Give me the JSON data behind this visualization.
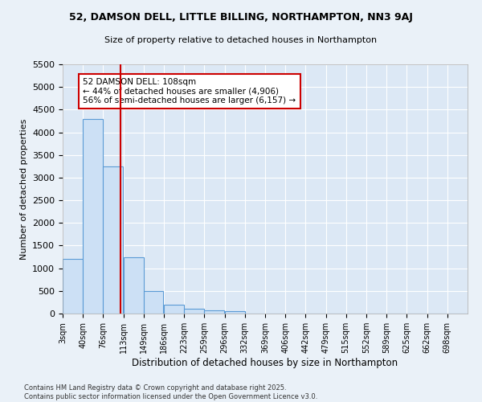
{
  "title1": "52, DAMSON DELL, LITTLE BILLING, NORTHAMPTON, NN3 9AJ",
  "title2": "Size of property relative to detached houses in Northampton",
  "xlabel": "Distribution of detached houses by size in Northampton",
  "ylabel": "Number of detached properties",
  "bar_color": "#cce0f5",
  "bar_edge_color": "#5b9bd5",
  "background_color": "#dce8f5",
  "grid_color": "#ffffff",
  "fig_color": "#eaf1f8",
  "vline_color": "#cc0000",
  "vline_x": 108,
  "annotation_text": "52 DAMSON DELL: 108sqm\n← 44% of detached houses are smaller (4,906)\n56% of semi-detached houses are larger (6,157) →",
  "annotation_box_color": "#ffffff",
  "annotation_border_color": "#cc0000",
  "footer1": "Contains HM Land Registry data © Crown copyright and database right 2025.",
  "footer2": "Contains public sector information licensed under the Open Government Licence v3.0.",
  "bins": [
    3,
    40,
    76,
    113,
    149,
    186,
    223,
    259,
    296,
    332,
    369,
    406,
    442,
    479,
    515,
    552,
    589,
    625,
    662,
    698,
    735
  ],
  "counts": [
    1200,
    4300,
    3250,
    1250,
    500,
    200,
    100,
    75,
    55,
    0,
    0,
    0,
    0,
    0,
    0,
    0,
    0,
    0,
    0,
    0
  ],
  "ylim": [
    0,
    5500
  ],
  "yticks": [
    0,
    500,
    1000,
    1500,
    2000,
    2500,
    3000,
    3500,
    4000,
    4500,
    5000,
    5500
  ]
}
